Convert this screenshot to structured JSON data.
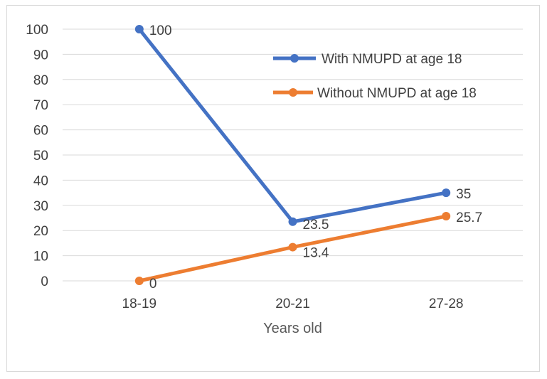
{
  "chart_data": {
    "type": "line",
    "categories": [
      "18-19",
      "20-21",
      "27-28"
    ],
    "xlabel": "Years old",
    "ylabel": "",
    "ylim": [
      0,
      100
    ],
    "yticks": [
      0,
      10,
      20,
      30,
      40,
      50,
      60,
      70,
      80,
      90,
      100
    ],
    "grid": true,
    "legend_position": "top-right",
    "series": [
      {
        "name": "With NMUPD at age 18",
        "values": [
          100,
          23.5,
          35
        ],
        "labels": [
          "100",
          "23.5",
          "35"
        ],
        "color": "#4472c4"
      },
      {
        "name": "Without NMUPD at age 18",
        "values": [
          0,
          13.4,
          25.7
        ],
        "labels": [
          "0",
          "13.4",
          "25.7"
        ],
        "color": "#ed7d31"
      }
    ]
  }
}
